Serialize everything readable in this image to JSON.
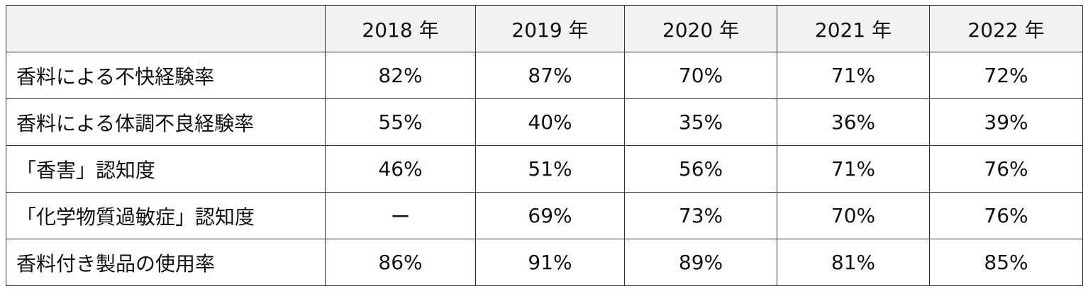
{
  "table": {
    "header": [
      "2018 年",
      "2019 年",
      "2020 年",
      "2021 年",
      "2022 年"
    ],
    "rows": [
      [
        "香料による不快経験率",
        "82%",
        "87%",
        "70%",
        "71%",
        "72%"
      ],
      [
        "香料による体調不良経験率",
        "55%",
        "40%",
        "35%",
        "36%",
        "39%"
      ],
      [
        "「香害」認知度",
        "46%",
        "51%",
        "56%",
        "71%",
        "76%"
      ],
      [
        "「化学物質過敏症」認知度",
        "ー",
        "69%",
        "73%",
        "70%",
        "76%"
      ],
      [
        "香料付き製品の使用率",
        "86%",
        "91%",
        "89%",
        "81%",
        "85%"
      ]
    ]
  }
}
